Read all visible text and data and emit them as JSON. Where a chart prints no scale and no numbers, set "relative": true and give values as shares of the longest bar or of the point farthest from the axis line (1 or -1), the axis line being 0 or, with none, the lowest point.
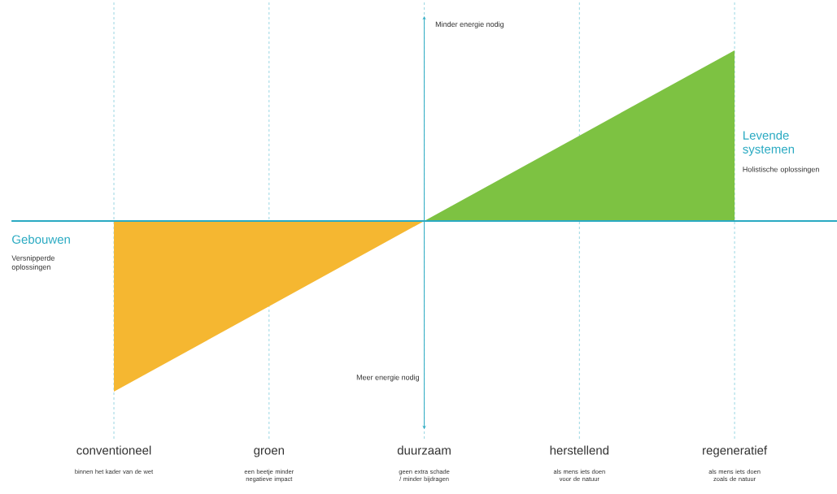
{
  "chart_data": {
    "type": "area",
    "relative": true,
    "grid": "x",
    "categories": [
      "conventioneel",
      "groen",
      "duurzaam",
      "herstellend",
      "regeneratief"
    ],
    "series": [
      {
        "color": "#f5b731",
        "values": [
          -1,
          -0.5,
          0,
          null,
          null
        ]
      },
      {
        "color": "#7dc242",
        "values": [
          null,
          null,
          0,
          0.5,
          1
        ]
      }
    ],
    "annotations": [
      "Gebouwen",
      "Versnipperde oplossingen",
      "Levende systemen",
      "Holistische oplossingen",
      "Minder energie nodig",
      "Meer energie nodig",
      "binnen het kader van de wet",
      "een beetje minder negatieve impact",
      "geen extra schade / minder bijdragen",
      "als mens iets doen voor de natuur",
      "als mens iets doen zoals de natuur"
    ],
    "ref_lines": [
      {
        "axis": "y",
        "value": 0,
        "color": "#2aaac2"
      },
      {
        "axis": "x",
        "value": "duurzaam",
        "color": "#2aaac2"
      }
    ]
  }
}
